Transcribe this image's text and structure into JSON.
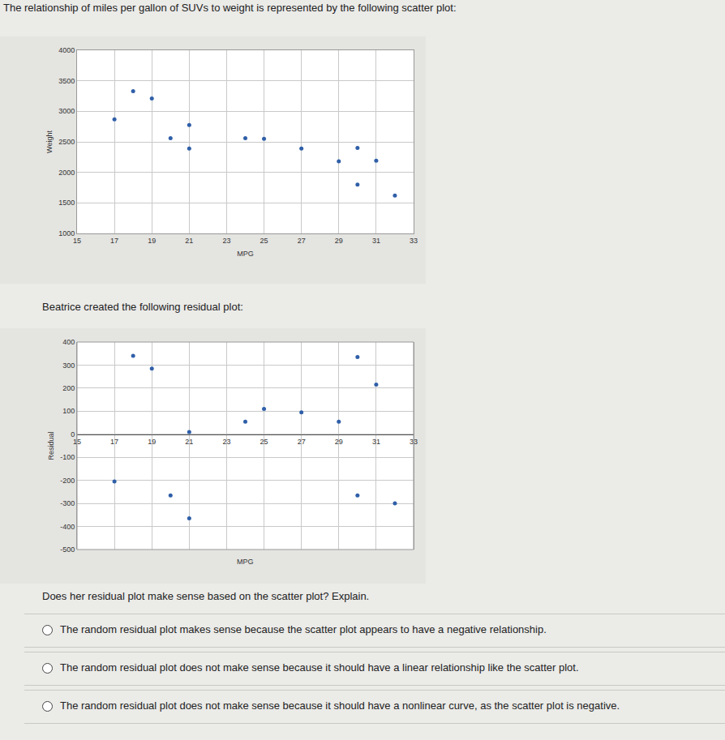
{
  "document": {
    "intro": "The relationship of miles per gallon of SUVs to weight is represented by the following scatter plot:",
    "residual_intro": "Beatrice created the following residual plot:",
    "question": "Does her residual plot make sense based on the scatter plot? Explain.",
    "options": [
      "The random residual plot makes sense because the scatter plot appears to have a negative relationship.",
      "The random residual plot does not make sense because it should have a linear relationship like the scatter plot.",
      "The random residual plot does not make sense because it should have a nonlinear curve, as the scatter plot is negative."
    ]
  },
  "chart_data": [
    {
      "type": "scatter",
      "x_label": "MPG",
      "y_label": "Weight",
      "x": [
        17,
        18,
        19,
        20,
        21,
        21,
        24,
        25,
        27,
        29,
        30,
        31,
        30,
        32
      ],
      "values": [
        2870,
        3330,
        3210,
        2560,
        2775,
        2390,
        2560,
        2550,
        2390,
        2180,
        2400,
        2190,
        1800,
        1620
      ],
      "xlim": [
        15,
        33
      ],
      "xticks": [
        15,
        17,
        19,
        21,
        23,
        25,
        27,
        29,
        31,
        33
      ],
      "ylim": [
        1000,
        4000
      ],
      "yticks": [
        1000,
        1500,
        2000,
        2500,
        3000,
        3500,
        4000
      ],
      "grid": true,
      "color": "#2f5fa8"
    },
    {
      "type": "scatter",
      "x_label": "MPG",
      "y_label": "Residual",
      "x": [
        18,
        19,
        21,
        24,
        25,
        27,
        29,
        30,
        31,
        17,
        20,
        21,
        30,
        32
      ],
      "values": [
        340,
        285,
        10,
        55,
        110,
        95,
        55,
        335,
        215,
        -205,
        -265,
        -365,
        -265,
        -300
      ],
      "xlim": [
        15,
        33
      ],
      "xticks": [
        15,
        17,
        19,
        21,
        23,
        25,
        27,
        29,
        31,
        33
      ],
      "ylim": [
        -500,
        400
      ],
      "yticks": [
        -500,
        -400,
        -300,
        -200,
        -100,
        0,
        100,
        200,
        300,
        400
      ],
      "grid": true,
      "color": "#2f5fa8"
    }
  ]
}
